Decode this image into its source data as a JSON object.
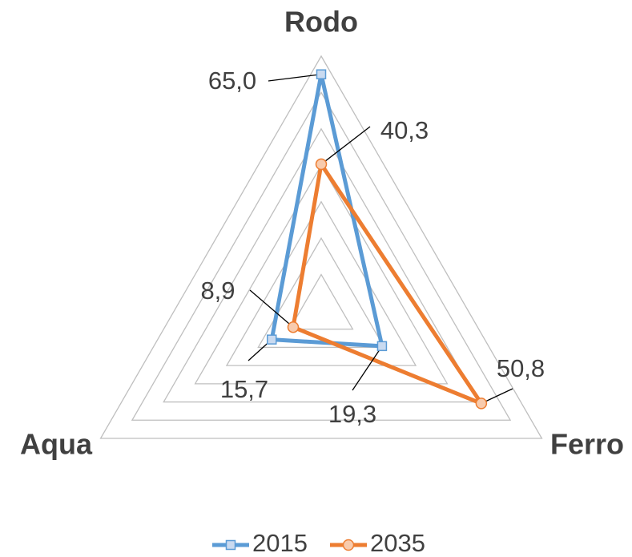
{
  "chart_data": {
    "type": "radar",
    "categories": [
      "Rodo",
      "Ferro",
      "Aqua"
    ],
    "series": [
      {
        "name": "2015",
        "color": "#5b9bd5",
        "marker": "square",
        "values": [
          65.0,
          19.3,
          15.7
        ],
        "value_labels": [
          "65,0",
          "19,3",
          "15,7"
        ]
      },
      {
        "name": "2035",
        "color": "#ed7d31",
        "marker": "circle",
        "values": [
          40.3,
          50.8,
          8.9
        ],
        "value_labels": [
          "40,3",
          "50,8",
          "8,9"
        ]
      }
    ],
    "ylim": [
      0,
      70
    ],
    "yticks": [
      0,
      10,
      20,
      30,
      40,
      50,
      60,
      70
    ],
    "grid": true,
    "legend": "bottom"
  }
}
